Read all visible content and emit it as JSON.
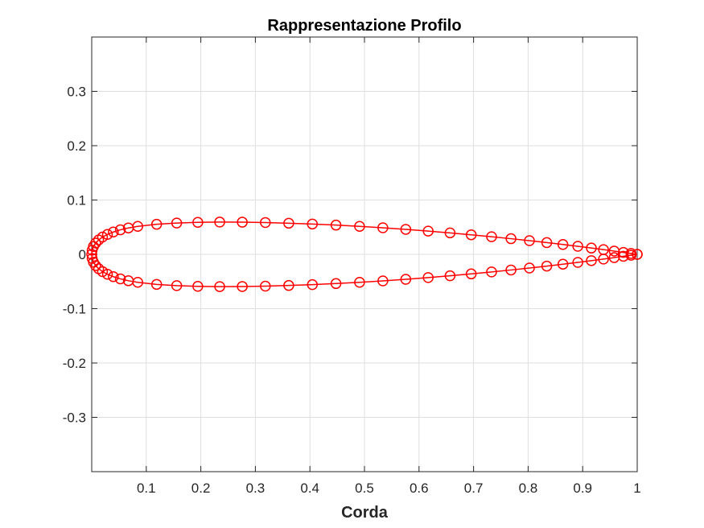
{
  "chart_data": {
    "type": "line",
    "title": "Rappresentazione Profilo",
    "xlabel": "Corda",
    "ylabel": "",
    "xlim": [
      0,
      1
    ],
    "ylim": [
      -0.4,
      0.4
    ],
    "grid": true,
    "legend": "none",
    "marker": "circle",
    "colors": {
      "series": "#ff0000",
      "axes": "#262626",
      "grid": "#dfdfdf",
      "background": "#ffffff"
    },
    "x_ticks": [
      {
        "value": 0.1,
        "label": "0.1"
      },
      {
        "value": 0.2,
        "label": "0.2"
      },
      {
        "value": 0.3,
        "label": "0.3"
      },
      {
        "value": 0.4,
        "label": "0.4"
      },
      {
        "value": 0.5,
        "label": "0.5"
      },
      {
        "value": 0.6,
        "label": "0.6"
      },
      {
        "value": 0.7,
        "label": "0.7"
      },
      {
        "value": 0.8,
        "label": "0.8"
      },
      {
        "value": 0.9,
        "label": "0.9"
      },
      {
        "value": 1.0,
        "label": "1"
      }
    ],
    "y_ticks": [
      {
        "value": 0.3,
        "label": "0.3"
      },
      {
        "value": 0.2,
        "label": "0.2"
      },
      {
        "value": 0.1,
        "label": "0.1"
      },
      {
        "value": 0.0,
        "label": "0"
      },
      {
        "value": -0.1,
        "label": "-0.1"
      },
      {
        "value": -0.2,
        "label": "-0.2"
      },
      {
        "value": -0.3,
        "label": "-0.3"
      }
    ],
    "series": [
      {
        "x": [
          1.0,
          0.9887,
          0.9747,
          0.9578,
          0.9382,
          0.9159,
          0.8911,
          0.8638,
          0.8342,
          0.8024,
          0.7686,
          0.733,
          0.6957,
          0.6569,
          0.6168,
          0.5757,
          0.5337,
          0.491,
          0.4478,
          0.4045,
          0.3612,
          0.3183,
          0.276,
          0.2346,
          0.1945,
          0.1558,
          0.119,
          0.0844,
          0.0672,
          0.0525,
          0.0396,
          0.0288,
          0.0198,
          0.0127,
          0.0072,
          0.0032,
          0.0008,
          0.0,
          0.0008,
          0.0032,
          0.0072,
          0.0127,
          0.0198,
          0.0288,
          0.0396,
          0.0525,
          0.0672,
          0.0844,
          0.119,
          0.1558,
          0.1945,
          0.2346,
          0.276,
          0.3183,
          0.3612,
          0.4045,
          0.4478,
          0.491,
          0.5337,
          0.5757,
          0.6168,
          0.6569,
          0.6957,
          0.733,
          0.7686,
          0.8024,
          0.8342,
          0.8638,
          0.8911,
          0.9159,
          0.9382,
          0.9578,
          0.9747,
          0.9887,
          1.0
        ],
        "y": [
          0.0,
          0.0016,
          0.0036,
          0.006,
          0.0087,
          0.0116,
          0.0148,
          0.0181,
          0.0216,
          0.0252,
          0.0288,
          0.0324,
          0.036,
          0.0395,
          0.0428,
          0.046,
          0.0489,
          0.0515,
          0.0538,
          0.0558,
          0.0573,
          0.0585,
          0.0592,
          0.0594,
          0.0589,
          0.0576,
          0.0553,
          0.0515,
          0.0486,
          0.0451,
          0.0411,
          0.0367,
          0.0318,
          0.0265,
          0.0207,
          0.0145,
          0.0076,
          0.0,
          -0.0076,
          -0.0145,
          -0.0207,
          -0.0265,
          -0.0318,
          -0.0367,
          -0.0411,
          -0.0451,
          -0.0486,
          -0.0515,
          -0.0553,
          -0.0576,
          -0.0589,
          -0.0594,
          -0.0592,
          -0.0585,
          -0.0573,
          -0.0558,
          -0.0538,
          -0.0515,
          -0.0489,
          -0.046,
          -0.0428,
          -0.0395,
          -0.036,
          -0.0324,
          -0.0288,
          -0.0252,
          -0.0216,
          -0.0181,
          -0.0148,
          -0.0116,
          -0.0087,
          -0.006,
          -0.0036,
          -0.0016,
          0.0
        ]
      }
    ]
  }
}
